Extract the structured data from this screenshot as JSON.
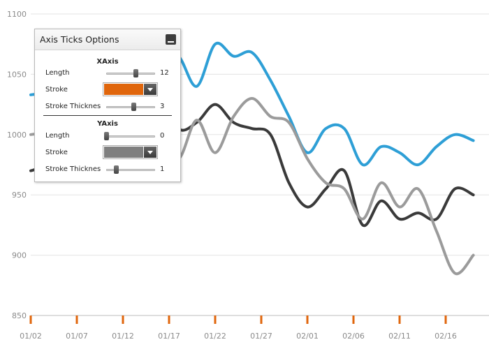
{
  "panel": {
    "title": "Axis Ticks Options",
    "xaxis": {
      "title": "XAxis",
      "length_label": "Length",
      "length_value": "12",
      "length_fraction": 0.6,
      "stroke_label": "Stroke",
      "stroke_color": "#e0660c",
      "thickness_label": "Stroke Thicknes",
      "thickness_value": "3",
      "thickness_fraction": 0.55
    },
    "yaxis": {
      "title": "YAxis",
      "length_label": "Length",
      "length_value": "0",
      "length_fraction": 0.0,
      "stroke_label": "Stroke",
      "stroke_color": "#7f7f7f",
      "thickness_label": "Stroke Thicknes",
      "thickness_value": "1",
      "thickness_fraction": 0.2
    }
  },
  "chart_data": {
    "type": "line",
    "yticks": [
      "850",
      "900",
      "950",
      "1000",
      "1050",
      "1100"
    ],
    "ylim": [
      850,
      1100
    ],
    "xticks": [
      "01/02",
      "01/07",
      "01/12",
      "01/17",
      "01/22",
      "01/27",
      "02/01",
      "02/06",
      "02/11",
      "02/16"
    ],
    "x_tick_color": "#e0660c",
    "x": [
      "01/02",
      "01/04",
      "01/06",
      "01/08",
      "01/10",
      "01/12",
      "01/14",
      "01/16",
      "01/18",
      "01/20",
      "01/22",
      "01/24",
      "01/26",
      "01/28",
      "01/30",
      "02/01",
      "02/03",
      "02/05",
      "02/07",
      "02/09",
      "02/11",
      "02/13",
      "02/15",
      "02/17",
      "02/19"
    ],
    "series": [
      {
        "color": "#2e9fd6",
        "values": [
          1033,
          1035,
          1038,
          1045,
          1050,
          1055,
          1058,
          1062,
          1065,
          1040,
          1075,
          1065,
          1068,
          1045,
          1015,
          985,
          1005,
          1005,
          975,
          990,
          985,
          975,
          990,
          1000,
          995
        ]
      },
      {
        "color": "#3a3a3a",
        "values": [
          970,
          975,
          985,
          995,
          1010,
          1020,
          1025,
          1035,
          1005,
          1010,
          1025,
          1010,
          1005,
          1000,
          960,
          940,
          955,
          970,
          925,
          945,
          930,
          935,
          930,
          955,
          950
        ]
      },
      {
        "color": "#9b9b9b",
        "values": [
          1000,
          1002,
          1004,
          1005,
          1006,
          1007,
          1006,
          1005,
          980,
          1012,
          985,
          1015,
          1030,
          1015,
          1010,
          980,
          960,
          955,
          930,
          960,
          940,
          955,
          920,
          885,
          900
        ]
      }
    ]
  }
}
